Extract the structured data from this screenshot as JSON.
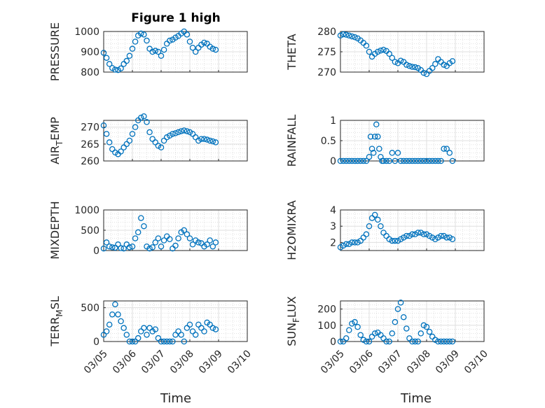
{
  "figure": {
    "title": "Figure 1 high",
    "xlabel": "Time",
    "x_ticks": [
      "03/05",
      "03/06",
      "03/07",
      "03/08",
      "03/09",
      "03/10"
    ],
    "marker_color": "#0072BD"
  },
  "chart_data": [
    {
      "type": "scatter",
      "title": "Figure 1 high",
      "xlabel": "",
      "ylabel": "PRESSURE",
      "ylabel_sub": "",
      "xlim": [
        0,
        5
      ],
      "ylim": [
        800,
        1000
      ],
      "yticks": [
        800,
        900,
        1000
      ],
      "ytick_labels": [
        "800",
        "900",
        "1000"
      ],
      "grid": true,
      "minor_grid": true,
      "x": [
        0.0,
        0.1,
        0.2,
        0.3,
        0.4,
        0.5,
        0.6,
        0.7,
        0.8,
        0.9,
        1.0,
        1.1,
        1.2,
        1.3,
        1.4,
        1.5,
        1.6,
        1.7,
        1.8,
        1.9,
        2.0,
        2.1,
        2.2,
        2.3,
        2.4,
        2.5,
        2.6,
        2.7,
        2.8,
        2.9,
        3.0,
        3.1,
        3.2,
        3.3,
        3.4,
        3.5,
        3.6,
        3.7,
        3.8,
        3.9
      ],
      "y": [
        895,
        870,
        840,
        820,
        812,
        810,
        818,
        840,
        855,
        880,
        915,
        950,
        980,
        990,
        985,
        955,
        915,
        900,
        905,
        900,
        880,
        910,
        940,
        955,
        960,
        970,
        978,
        990,
        1000,
        985,
        950,
        920,
        900,
        920,
        935,
        945,
        940,
        925,
        915,
        910
      ]
    },
    {
      "type": "scatter",
      "title": "",
      "xlabel": "",
      "ylabel": "THETA",
      "ylabel_sub": "",
      "xlim": [
        0,
        5
      ],
      "ylim": [
        270,
        280
      ],
      "yticks": [
        270,
        275,
        280
      ],
      "ytick_labels": [
        "270",
        "275",
        "280"
      ],
      "grid": true,
      "minor_grid": true,
      "x": [
        0.0,
        0.1,
        0.2,
        0.3,
        0.4,
        0.5,
        0.6,
        0.7,
        0.8,
        0.9,
        1.0,
        1.1,
        1.2,
        1.3,
        1.4,
        1.5,
        1.6,
        1.7,
        1.8,
        1.9,
        2.0,
        2.1,
        2.2,
        2.3,
        2.4,
        2.5,
        2.6,
        2.7,
        2.8,
        2.9,
        3.0,
        3.1,
        3.2,
        3.3,
        3.4,
        3.5,
        3.6,
        3.7,
        3.8,
        3.9
      ],
      "y": [
        279.0,
        279.3,
        279.2,
        279.0,
        278.8,
        278.6,
        278.3,
        277.8,
        277.2,
        276.5,
        275.0,
        273.8,
        274.5,
        275.0,
        275.3,
        275.5,
        275.2,
        274.5,
        273.5,
        272.5,
        272.2,
        272.8,
        272.5,
        271.8,
        271.5,
        271.3,
        271.2,
        271.0,
        270.5,
        269.8,
        269.5,
        270.3,
        271.0,
        272.0,
        273.2,
        272.5,
        271.8,
        271.5,
        272.2,
        272.7
      ]
    },
    {
      "type": "scatter",
      "title": "",
      "xlabel": "",
      "ylabel": "AIR",
      "ylabel_sub": "T",
      "ylabel_rest": "EMP",
      "xlim": [
        0,
        5
      ],
      "ylim": [
        260,
        272
      ],
      "yticks": [
        260,
        265,
        270
      ],
      "ytick_labels": [
        "260",
        "265",
        "270"
      ],
      "grid": true,
      "minor_grid": true,
      "x": [
        0.0,
        0.1,
        0.2,
        0.3,
        0.4,
        0.5,
        0.6,
        0.7,
        0.8,
        0.9,
        1.0,
        1.1,
        1.2,
        1.3,
        1.4,
        1.5,
        1.6,
        1.7,
        1.8,
        1.9,
        2.0,
        2.1,
        2.2,
        2.3,
        2.4,
        2.5,
        2.6,
        2.7,
        2.8,
        2.9,
        3.0,
        3.1,
        3.2,
        3.3,
        3.4,
        3.5,
        3.6,
        3.7,
        3.8,
        3.9
      ],
      "y": [
        270.5,
        268.0,
        265.5,
        263.5,
        262.5,
        262.0,
        262.8,
        264.0,
        265.0,
        266.0,
        268.0,
        270.0,
        272.0,
        272.8,
        273.2,
        271.5,
        268.5,
        266.5,
        265.5,
        264.5,
        264.0,
        266.0,
        267.0,
        267.5,
        268.0,
        268.2,
        268.5,
        268.8,
        269.0,
        268.8,
        268.5,
        268.0,
        267.0,
        266.0,
        266.5,
        266.5,
        266.3,
        266.0,
        265.8,
        265.5
      ]
    },
    {
      "type": "scatter",
      "title": "",
      "xlabel": "",
      "ylabel": "RAINFALL",
      "ylabel_sub": "",
      "xlim": [
        0,
        5
      ],
      "ylim": [
        0,
        1
      ],
      "yticks": [
        0,
        0.5,
        1
      ],
      "ytick_labels": [
        "0",
        "0.5",
        "1"
      ],
      "grid": true,
      "minor_grid": true,
      "x": [
        0.0,
        0.1,
        0.2,
        0.3,
        0.4,
        0.5,
        0.6,
        0.7,
        0.8,
        0.9,
        1.0,
        1.05,
        1.1,
        1.15,
        1.2,
        1.25,
        1.3,
        1.35,
        1.4,
        1.45,
        1.5,
        1.6,
        1.7,
        1.8,
        1.9,
        2.0,
        2.1,
        2.2,
        2.3,
        2.4,
        2.5,
        2.6,
        2.7,
        2.8,
        2.9,
        3.0,
        3.1,
        3.2,
        3.3,
        3.4,
        3.5,
        3.6,
        3.7,
        3.8,
        3.9
      ],
      "y": [
        0,
        0,
        0,
        0,
        0,
        0,
        0,
        0,
        0,
        0,
        0.1,
        0.6,
        0.3,
        0.2,
        0.6,
        0.9,
        0.6,
        0.3,
        0.1,
        0,
        0,
        0,
        0,
        0.2,
        0,
        0.2,
        0,
        0,
        0,
        0,
        0,
        0,
        0,
        0,
        0,
        0,
        0,
        0,
        0,
        0,
        0,
        0.3,
        0.3,
        0.2,
        0
      ]
    },
    {
      "type": "scatter",
      "title": "",
      "xlabel": "",
      "ylabel": "MIXDEPTH",
      "ylabel_sub": "",
      "xlim": [
        0,
        5
      ],
      "ylim": [
        0,
        1000
      ],
      "yticks": [
        0,
        500,
        1000
      ],
      "ytick_labels": [
        "0",
        "500",
        "1000"
      ],
      "grid": true,
      "minor_grid": true,
      "x": [
        0.0,
        0.1,
        0.2,
        0.3,
        0.4,
        0.5,
        0.6,
        0.7,
        0.8,
        0.9,
        1.0,
        1.1,
        1.2,
        1.3,
        1.4,
        1.5,
        1.6,
        1.7,
        1.8,
        1.9,
        2.0,
        2.1,
        2.2,
        2.3,
        2.4,
        2.5,
        2.6,
        2.7,
        2.8,
        2.9,
        3.0,
        3.1,
        3.2,
        3.3,
        3.4,
        3.5,
        3.6,
        3.7,
        3.8,
        3.9
      ],
      "y": [
        50,
        200,
        100,
        80,
        70,
        150,
        60,
        50,
        150,
        80,
        100,
        300,
        450,
        800,
        600,
        100,
        50,
        80,
        200,
        300,
        100,
        250,
        350,
        280,
        50,
        120,
        300,
        450,
        500,
        400,
        300,
        150,
        250,
        200,
        180,
        100,
        150,
        250,
        100,
        200
      ]
    },
    {
      "type": "scatter",
      "title": "",
      "xlabel": "",
      "ylabel": "H2OMIXRA",
      "ylabel_sub": "",
      "xlim": [
        0,
        5
      ],
      "ylim": [
        1.5,
        4
      ],
      "yticks": [
        2,
        3,
        4
      ],
      "ytick_labels": [
        "2",
        "3",
        "4"
      ],
      "grid": true,
      "minor_grid": true,
      "x": [
        0.0,
        0.1,
        0.2,
        0.3,
        0.4,
        0.5,
        0.6,
        0.7,
        0.8,
        0.9,
        1.0,
        1.1,
        1.2,
        1.3,
        1.4,
        1.5,
        1.6,
        1.7,
        1.8,
        1.9,
        2.0,
        2.1,
        2.2,
        2.3,
        2.4,
        2.5,
        2.6,
        2.7,
        2.8,
        2.9,
        3.0,
        3.1,
        3.2,
        3.3,
        3.4,
        3.5,
        3.6,
        3.7,
        3.8,
        3.9
      ],
      "y": [
        1.7,
        1.8,
        1.9,
        1.9,
        2.0,
        2.0,
        2.0,
        2.1,
        2.3,
        2.5,
        3.0,
        3.5,
        3.7,
        3.4,
        3.0,
        2.6,
        2.4,
        2.2,
        2.1,
        2.1,
        2.1,
        2.2,
        2.3,
        2.4,
        2.4,
        2.5,
        2.5,
        2.6,
        2.6,
        2.5,
        2.5,
        2.4,
        2.3,
        2.2,
        2.3,
        2.4,
        2.4,
        2.3,
        2.3,
        2.2
      ]
    },
    {
      "type": "scatter",
      "title": "",
      "xlabel": "",
      "ylabel": "TERR",
      "ylabel_sub": "M",
      "ylabel_rest": "SL",
      "xlim": [
        0,
        5
      ],
      "ylim": [
        0,
        600
      ],
      "yticks": [
        0,
        500
      ],
      "ytick_labels": [
        "0",
        "500"
      ],
      "grid": true,
      "minor_grid": true,
      "x": [
        0.0,
        0.1,
        0.2,
        0.3,
        0.4,
        0.5,
        0.6,
        0.7,
        0.8,
        0.9,
        1.0,
        1.1,
        1.2,
        1.3,
        1.4,
        1.5,
        1.6,
        1.7,
        1.8,
        1.9,
        2.0,
        2.1,
        2.2,
        2.3,
        2.4,
        2.5,
        2.6,
        2.7,
        2.8,
        2.9,
        3.0,
        3.1,
        3.2,
        3.3,
        3.4,
        3.5,
        3.6,
        3.7,
        3.8,
        3.9
      ],
      "y": [
        100,
        150,
        250,
        400,
        550,
        400,
        300,
        200,
        100,
        0,
        0,
        0,
        50,
        150,
        200,
        100,
        200,
        150,
        180,
        50,
        0,
        0,
        0,
        0,
        0,
        100,
        150,
        100,
        0,
        200,
        250,
        150,
        100,
        250,
        200,
        150,
        280,
        250,
        200,
        180
      ]
    },
    {
      "type": "scatter",
      "title": "",
      "xlabel": "",
      "ylabel": "SUN",
      "ylabel_sub": "F",
      "ylabel_rest": "LUX",
      "xlim": [
        0,
        5
      ],
      "ylim": [
        0,
        250
      ],
      "yticks": [
        0,
        100,
        200
      ],
      "ytick_labels": [
        "0",
        "100",
        "200"
      ],
      "grid": true,
      "minor_grid": true,
      "x": [
        0.0,
        0.1,
        0.2,
        0.3,
        0.4,
        0.5,
        0.6,
        0.7,
        0.8,
        0.9,
        1.0,
        1.1,
        1.2,
        1.3,
        1.4,
        1.5,
        1.6,
        1.7,
        1.8,
        1.9,
        2.0,
        2.1,
        2.2,
        2.3,
        2.4,
        2.5,
        2.6,
        2.7,
        2.8,
        2.9,
        3.0,
        3.1,
        3.2,
        3.3,
        3.4,
        3.5,
        3.6,
        3.7,
        3.8,
        3.9
      ],
      "y": [
        0,
        0,
        20,
        70,
        110,
        120,
        90,
        40,
        10,
        0,
        0,
        30,
        50,
        55,
        40,
        20,
        0,
        0,
        50,
        120,
        200,
        240,
        150,
        80,
        20,
        0,
        0,
        0,
        50,
        100,
        90,
        60,
        30,
        10,
        0,
        0,
        0,
        0,
        0,
        0
      ]
    }
  ]
}
